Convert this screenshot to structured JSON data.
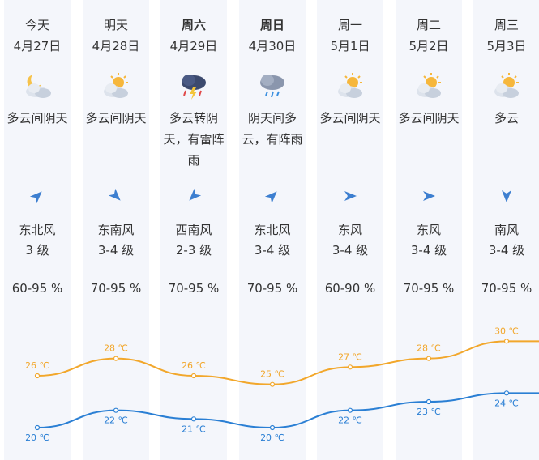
{
  "forecast": [
    {
      "day": "今天",
      "date": "4月27日",
      "icon": "partly-cloudy-night-icon",
      "desc": [
        "多云间阴天"
      ],
      "wind_icon": "wind-arrow-northeast-icon",
      "wind_dir": "东北风",
      "wind_level": "3 级",
      "humidity": "60-95 %",
      "high": "26 ℃",
      "low": "20 ℃",
      "bold": false
    },
    {
      "day": "明天",
      "date": "4月28日",
      "icon": "partly-cloudy-day-icon",
      "desc": [
        "多云间阴天"
      ],
      "wind_icon": "wind-arrow-southeast-icon",
      "wind_dir": "东南风",
      "wind_level": "3-4 级",
      "humidity": "70-95 %",
      "high": "28 ℃",
      "low": "22 ℃",
      "bold": false
    },
    {
      "day": "周六",
      "date": "4月29日",
      "icon": "thunderstorm-icon",
      "desc": [
        "多云转阴",
        "天，有雷阵",
        "雨"
      ],
      "wind_icon": "wind-arrow-southwest-icon",
      "wind_dir": "西南风",
      "wind_level": "2-3 级",
      "humidity": "70-95 %",
      "high": "26 ℃",
      "low": "21 ℃",
      "bold": true
    },
    {
      "day": "周日",
      "date": "4月30日",
      "icon": "shower-rain-icon",
      "desc": [
        "阴天间多",
        "云，有阵雨"
      ],
      "wind_icon": "wind-arrow-northeast-icon",
      "wind_dir": "东北风",
      "wind_level": "3-4 级",
      "humidity": "70-95 %",
      "high": "25 ℃",
      "low": "20 ℃",
      "bold": true
    },
    {
      "day": "周一",
      "date": "5月1日",
      "icon": "partly-cloudy-day-icon",
      "desc": [
        "多云间阴天"
      ],
      "wind_icon": "wind-arrow-east-icon",
      "wind_dir": "东风",
      "wind_level": "3-4 级",
      "humidity": "60-90 %",
      "high": "27 ℃",
      "low": "22 ℃",
      "bold": false
    },
    {
      "day": "周二",
      "date": "5月2日",
      "icon": "partly-cloudy-day-icon",
      "desc": [
        "多云间阴天"
      ],
      "wind_icon": "wind-arrow-east-icon",
      "wind_dir": "东风",
      "wind_level": "3-4 级",
      "humidity": "70-95 %",
      "high": "28 ℃",
      "low": "23 ℃",
      "bold": false
    },
    {
      "day": "周三",
      "date": "5月3日",
      "icon": "partly-cloudy-day-icon",
      "desc": [
        "多云"
      ],
      "wind_icon": "wind-arrow-south-icon",
      "wind_dir": "南风",
      "wind_level": "3-4 级",
      "humidity": "70-95 %",
      "high": "30 ℃",
      "low": "24 ℃",
      "bold": false
    }
  ],
  "colors": {
    "column_bg": "#f4f6fb",
    "high_line": "#f2a72b",
    "low_line": "#2a7fd4",
    "wind_arrow": "#3d7fd0",
    "text": "#333333"
  },
  "chart_data": {
    "type": "line",
    "categories": [
      "今天",
      "明天",
      "周六",
      "周日",
      "周一",
      "周二",
      "周三"
    ],
    "series": [
      {
        "name": "",
        "values": [
          26,
          28,
          26,
          25,
          27,
          28,
          30
        ]
      },
      {
        "name": "",
        "values": [
          20,
          22,
          21,
          20,
          22,
          23,
          24
        ]
      }
    ],
    "unit": "℃",
    "ylim": [
      17,
      32
    ]
  }
}
